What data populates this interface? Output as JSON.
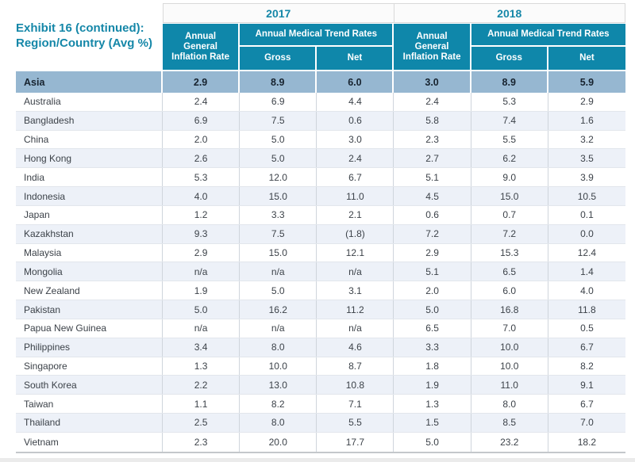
{
  "title": {
    "line1": "Exhibit 16 (continued):",
    "line2": "Region/Country (Avg %)"
  },
  "header": {
    "years": [
      "2017",
      "2018"
    ],
    "inflation_label": "Annual General Inflation Rate",
    "medical_label": "Annual Medical Trend Rates",
    "gross_label": "Gross",
    "net_label": "Net"
  },
  "colors": {
    "teal_header": "#0f87aa",
    "title_text": "#1587a8",
    "region_row_bg": "#96b7d1",
    "alt_row_bg": "#edf1f8",
    "column_divider": "#cfd5dc",
    "row_divider": "#e2e6ec"
  },
  "table": {
    "column_order": [
      "2017 Annual General Inflation Rate",
      "2017 Gross",
      "2017 Net",
      "2018 Annual General Inflation Rate",
      "2018 Gross",
      "2018 Net"
    ],
    "region_row": {
      "label": "Asia",
      "values": [
        "2.9",
        "8.9",
        "6.0",
        "3.0",
        "8.9",
        "5.9"
      ]
    },
    "rows": [
      {
        "label": "Australia",
        "values": [
          "2.4",
          "6.9",
          "4.4",
          "2.4",
          "5.3",
          "2.9"
        ]
      },
      {
        "label": "Bangladesh",
        "values": [
          "6.9",
          "7.5",
          "0.6",
          "5.8",
          "7.4",
          "1.6"
        ]
      },
      {
        "label": "China",
        "values": [
          "2.0",
          "5.0",
          "3.0",
          "2.3",
          "5.5",
          "3.2"
        ]
      },
      {
        "label": "Hong Kong",
        "values": [
          "2.6",
          "5.0",
          "2.4",
          "2.7",
          "6.2",
          "3.5"
        ]
      },
      {
        "label": "India",
        "values": [
          "5.3",
          "12.0",
          "6.7",
          "5.1",
          "9.0",
          "3.9"
        ]
      },
      {
        "label": "Indonesia",
        "values": [
          "4.0",
          "15.0",
          "11.0",
          "4.5",
          "15.0",
          "10.5"
        ]
      },
      {
        "label": "Japan",
        "values": [
          "1.2",
          "3.3",
          "2.1",
          "0.6",
          "0.7",
          "0.1"
        ]
      },
      {
        "label": "Kazakhstan",
        "values": [
          "9.3",
          "7.5",
          "(1.8)",
          "7.2",
          "7.2",
          "0.0"
        ]
      },
      {
        "label": "Malaysia",
        "values": [
          "2.9",
          "15.0",
          "12.1",
          "2.9",
          "15.3",
          "12.4"
        ]
      },
      {
        "label": "Mongolia",
        "values": [
          "n/a",
          "n/a",
          "n/a",
          "5.1",
          "6.5",
          "1.4"
        ]
      },
      {
        "label": "New Zealand",
        "values": [
          "1.9",
          "5.0",
          "3.1",
          "2.0",
          "6.0",
          "4.0"
        ]
      },
      {
        "label": "Pakistan",
        "values": [
          "5.0",
          "16.2",
          "11.2",
          "5.0",
          "16.8",
          "11.8"
        ]
      },
      {
        "label": "Papua New Guinea",
        "values": [
          "n/a",
          "n/a",
          "n/a",
          "6.5",
          "7.0",
          "0.5"
        ]
      },
      {
        "label": "Philippines",
        "values": [
          "3.4",
          "8.0",
          "4.6",
          "3.3",
          "10.0",
          "6.7"
        ]
      },
      {
        "label": "Singapore",
        "values": [
          "1.3",
          "10.0",
          "8.7",
          "1.8",
          "10.0",
          "8.2"
        ]
      },
      {
        "label": "South Korea",
        "values": [
          "2.2",
          "13.0",
          "10.8",
          "1.9",
          "11.0",
          "9.1"
        ]
      },
      {
        "label": "Taiwan",
        "values": [
          "1.1",
          "8.2",
          "7.1",
          "1.3",
          "8.0",
          "6.7"
        ]
      },
      {
        "label": "Thailand",
        "values": [
          "2.5",
          "8.0",
          "5.5",
          "1.5",
          "8.5",
          "7.0"
        ]
      },
      {
        "label": "Vietnam",
        "values": [
          "2.3",
          "20.0",
          "17.7",
          "5.0",
          "23.2",
          "18.2"
        ]
      }
    ]
  }
}
